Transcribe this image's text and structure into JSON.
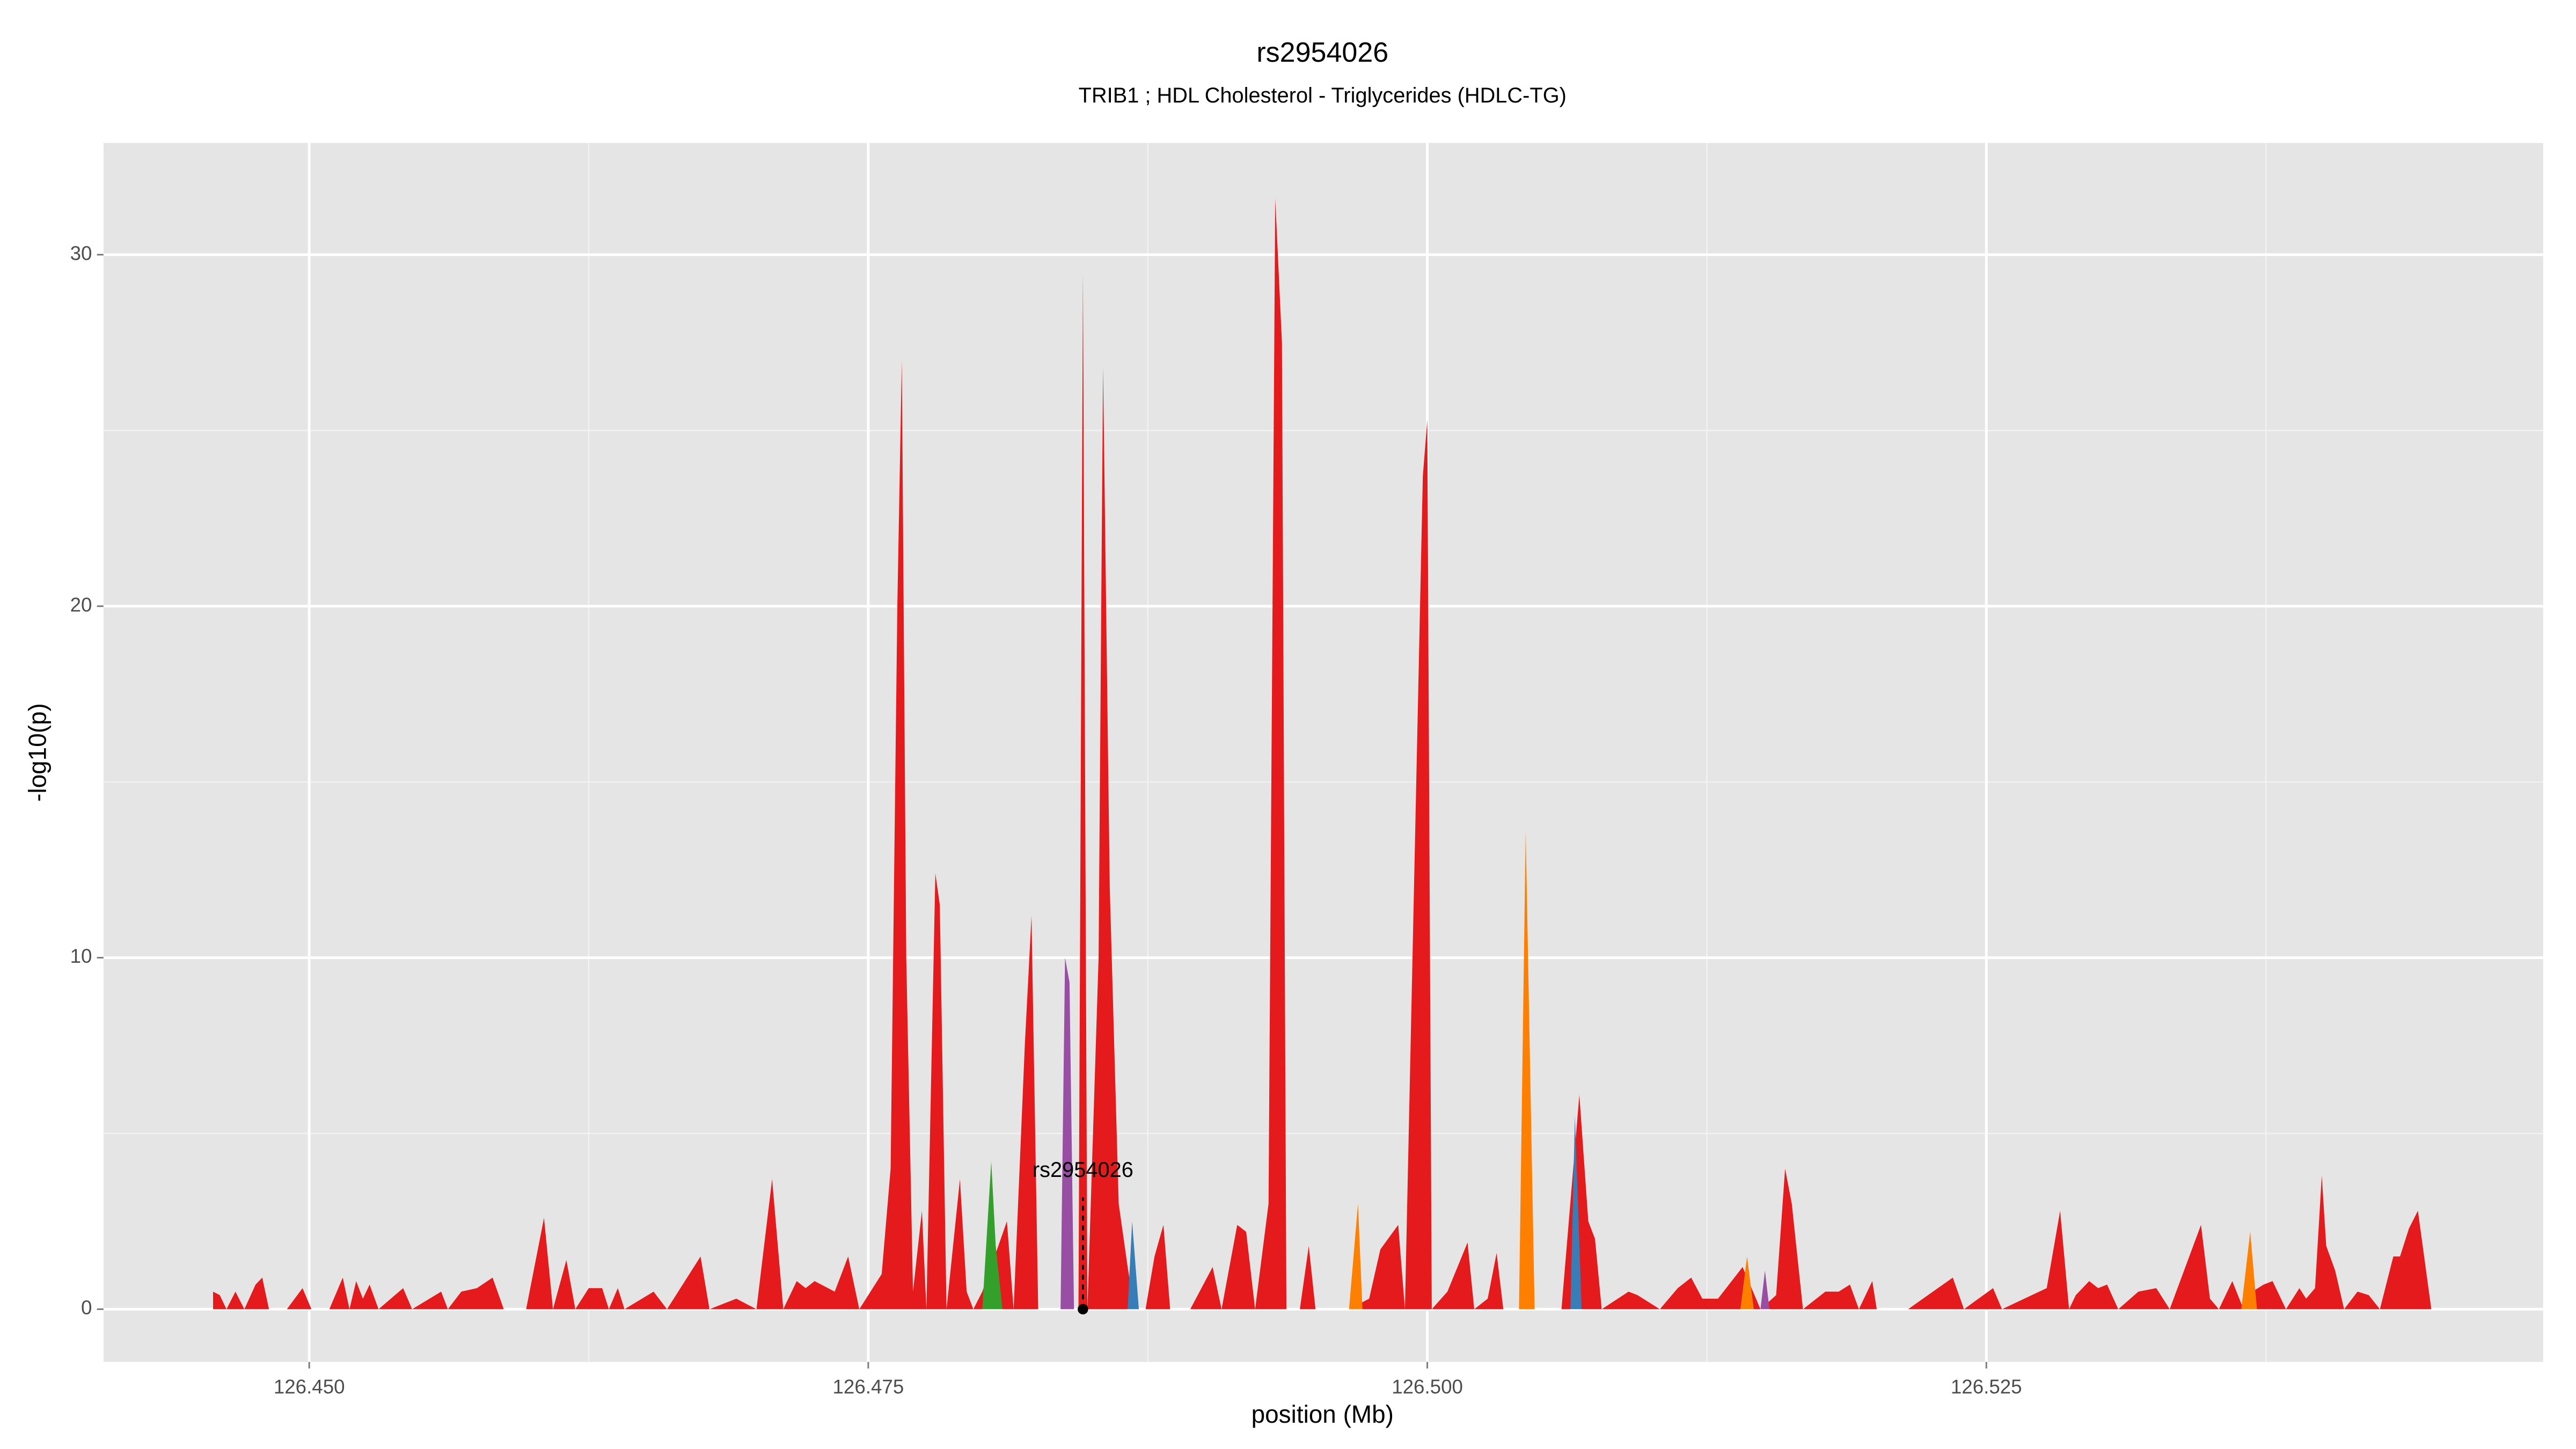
{
  "chart_data": {
    "type": "area",
    "title": "rs2954026",
    "subtitle": "TRIB1 ; HDL Cholesterol - Triglycerides (HDLC-TG)",
    "x_label": "position (Mb)",
    "y_label": "-log10(p)",
    "xlim": [
      126.4408,
      126.5499
    ],
    "ylim": [
      -1.5,
      33.18
    ],
    "xticks": [
      {
        "value": 126.45,
        "label": "126.450"
      },
      {
        "value": 126.475,
        "label": "126.475"
      },
      {
        "value": 126.5,
        "label": "126.500"
      },
      {
        "value": 126.525,
        "label": "126.525"
      }
    ],
    "x_minor_ticks": [
      126.4625,
      126.4875,
      126.5125,
      126.5375
    ],
    "yticks": [
      0,
      10,
      20,
      30
    ],
    "y_minor_ticks": [
      5,
      15,
      25
    ],
    "grid": true,
    "series": [
      {
        "color": "#e41a1c",
        "x": [
          126.4457,
          126.446,
          126.4463,
          126.4467,
          126.4471,
          126.4476,
          126.4479,
          126.4482,
          126.449,
          126.4497,
          126.4501,
          126.4509,
          126.4515,
          126.4518,
          126.4521,
          126.4524,
          126.4527,
          126.4531,
          126.4542,
          126.4546,
          126.4559,
          126.4562,
          126.4568,
          126.4575,
          126.4582,
          126.4587,
          126.4597,
          126.4605,
          126.4609,
          126.4615,
          126.4619,
          126.4625,
          126.4631,
          126.4634,
          126.4638,
          126.4641,
          126.4654,
          126.466,
          126.4675,
          126.4679,
          126.4691,
          126.47,
          126.4707,
          126.4712,
          126.4718,
          126.4722,
          126.4726,
          126.4735,
          126.4741,
          126.4746,
          126.4756,
          126.476,
          126.4763,
          126.4765,
          126.4767,
          126.477,
          126.4774,
          126.4776,
          126.478,
          126.4782,
          126.4785,
          126.4791,
          126.4794,
          126.4797,
          126.4801,
          126.4812,
          126.4815,
          126.482,
          126.4823,
          126.4826,
          126.4831,
          126.4844,
          126.4846,
          126.4848,
          126.4853,
          126.4855,
          126.4858,
          126.4862,
          126.4866,
          126.4869,
          126.4874,
          126.4878,
          126.4882,
          126.4885,
          126.4894,
          126.4904,
          126.4908,
          126.4915,
          126.4919,
          126.4923,
          126.4929,
          126.4932,
          126.4935,
          126.4937,
          126.4943,
          126.4947,
          126.495,
          126.4957,
          126.4965,
          126.4974,
          126.4979,
          126.4987,
          126.499,
          126.4998,
          126.5,
          126.5002,
          126.5009,
          126.5018,
          126.5021,
          126.5027,
          126.5031,
          126.5034,
          126.506,
          126.5068,
          126.5072,
          126.5075,
          126.5078,
          126.509,
          126.5094,
          126.5104,
          126.5112,
          126.5118,
          126.5123,
          126.513,
          126.5141,
          126.5149,
          126.5156,
          126.516,
          126.5163,
          126.5168,
          126.5178,
          126.5184,
          126.5189,
          126.5193,
          126.5199,
          126.5201,
          126.5215,
          126.5235,
          126.524,
          126.5253,
          126.5257,
          126.5277,
          126.5283,
          126.5287,
          126.529,
          126.5296,
          126.53,
          126.5304,
          126.5309,
          126.5318,
          126.5326,
          126.5332,
          126.5346,
          126.535,
          126.5354,
          126.536,
          126.5365,
          126.5369,
          126.5374,
          126.5378,
          126.5384,
          126.539,
          126.5393,
          126.5397,
          126.54,
          126.5402,
          126.5406,
          126.541,
          126.5416,
          126.5421,
          126.5426,
          126.5432,
          126.5435,
          126.5439,
          126.5443,
          126.5449
        ],
        "values": [
          0.5,
          0.4,
          0,
          0.5,
          0,
          0.7,
          0.9,
          0,
          0,
          0.6,
          0,
          0,
          0.9,
          0,
          0.8,
          0.3,
          0.7,
          0,
          0.6,
          0,
          0.5,
          0,
          0.5,
          0.6,
          0.9,
          0,
          0,
          2.6,
          0,
          1.4,
          0,
          0.6,
          0.6,
          0,
          0.6,
          0,
          0.5,
          0,
          1.5,
          0,
          0.3,
          0,
          3.7,
          0,
          0.8,
          0.6,
          0.8,
          0.5,
          1.5,
          0,
          1.0,
          4.0,
          20,
          27,
          10,
          0.5,
          2.8,
          0,
          12.4,
          11.5,
          0,
          3.7,
          0.5,
          0,
          0.5,
          2.5,
          0,
          7.5,
          11.2,
          0,
          0,
          0,
          29.5,
          0,
          10,
          26.8,
          12,
          3,
          1.2,
          0,
          0,
          1.5,
          2.4,
          0,
          0,
          1.2,
          0,
          2.4,
          2.2,
          0,
          3,
          31.6,
          27.5,
          0,
          0,
          1.8,
          0,
          0,
          0,
          0.3,
          1.7,
          2.4,
          0,
          23.7,
          25.3,
          0,
          0.5,
          1.9,
          0,
          0.3,
          1.6,
          0,
          0,
          6.1,
          2.5,
          2.0,
          0,
          0.5,
          0.4,
          0,
          0.6,
          0.9,
          0.3,
          0.3,
          1.2,
          0,
          0.4,
          4.0,
          3.0,
          0,
          0.5,
          0.5,
          0.7,
          0,
          0.8,
          0,
          0,
          0.9,
          0,
          0.6,
          0,
          0.6,
          2.8,
          0,
          0.4,
          0.8,
          0.6,
          0.7,
          0,
          0.5,
          0.6,
          0,
          2.4,
          0.3,
          0,
          0.8,
          0,
          0.5,
          0.7,
          0.8,
          0,
          0.6,
          0.3,
          0.6,
          3.8,
          1.8,
          1.1,
          0,
          0.5,
          0.4,
          0,
          1.5,
          1.5,
          2.3,
          2.8,
          0
        ]
      },
      {
        "color": "#ff7f00",
        "x": [
          126.4965,
          126.4969,
          126.4971,
          126.5041,
          126.5044,
          126.5048,
          126.514,
          126.5143,
          126.5146,
          126.5364,
          126.5368,
          126.5371
        ],
        "values": [
          0,
          3,
          0,
          0,
          13.6,
          0,
          0,
          1.5,
          0,
          0,
          2.2,
          0
        ]
      },
      {
        "color": "#377eb8",
        "x": [
          126.4866,
          126.4868,
          126.4871,
          126.5064,
          126.5066,
          126.5069
        ],
        "values": [
          0,
          2.5,
          0,
          0,
          5.5,
          0
        ]
      },
      {
        "color": "#984ea3",
        "x": [
          126.4836,
          126.4838,
          126.484,
          126.4842,
          126.5149,
          126.5151,
          126.5153
        ],
        "values": [
          0,
          10,
          9.3,
          0,
          0,
          1.1,
          0
        ]
      },
      {
        "color": "#33a02c",
        "x": [
          126.4801,
          126.4805,
          126.4807,
          126.481
        ],
        "values": [
          0,
          4.2,
          1.8,
          0
        ]
      }
    ],
    "highlight": {
      "label": "rs2954026",
      "x": 126.4846,
      "y": 0
    }
  }
}
